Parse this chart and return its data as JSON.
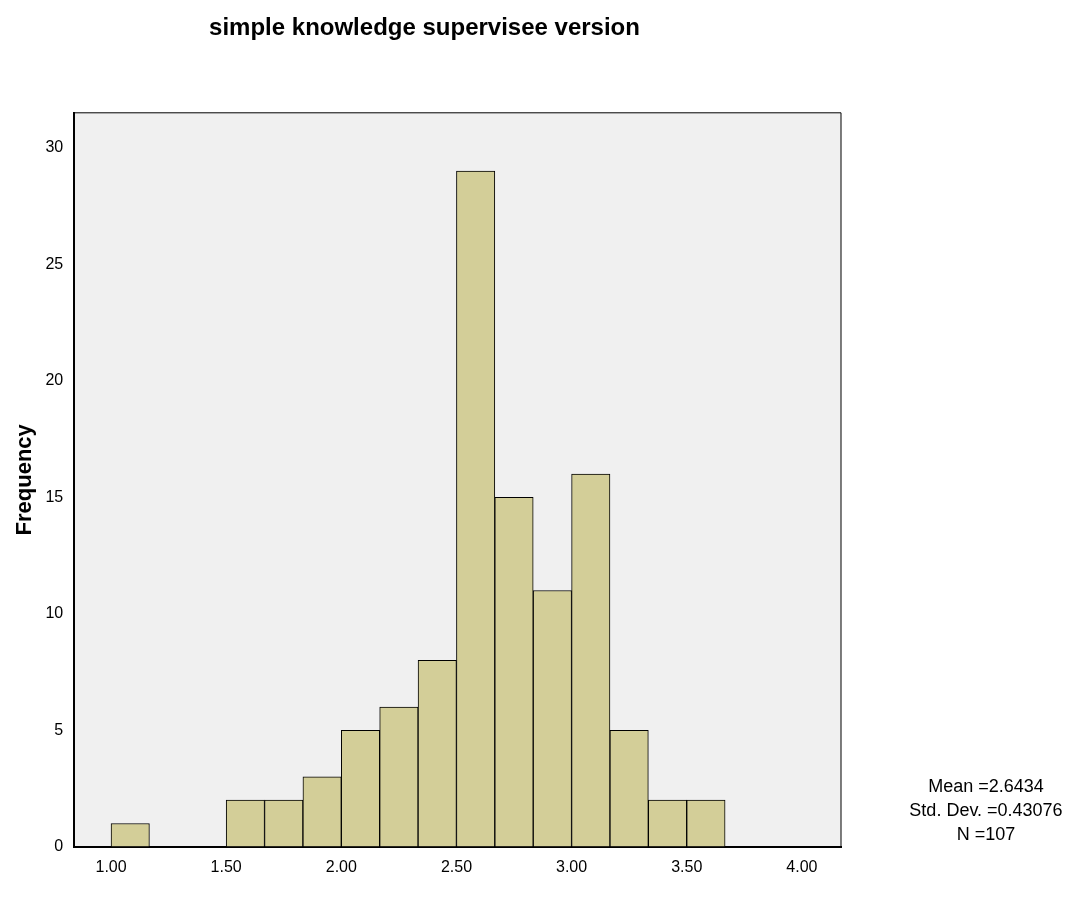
{
  "chart_data": {
    "type": "histogram",
    "title": "simple knowledge supervisee version",
    "ylabel": "Frequency",
    "bins": [
      1,
      1.1667,
      1.3333,
      1.5,
      1.6667,
      1.8333,
      2,
      2.1667,
      2.3333,
      2.5,
      2.6667,
      2.8333,
      3,
      3.1667,
      3.3333,
      3.5,
      3.6667
    ],
    "values": [
      1,
      0,
      0,
      2,
      2,
      3,
      5,
      6,
      8,
      29,
      15,
      11,
      16,
      5,
      2,
      2
    ],
    "color": "#d3ce98",
    "xlim": [
      0.84,
      4.17
    ],
    "xticks": [
      {
        "value": 1,
        "label": "1.00"
      },
      {
        "value": 1.5,
        "label": "1.50"
      },
      {
        "value": 2,
        "label": "2.00"
      },
      {
        "value": 2.5,
        "label": "2.50"
      },
      {
        "value": 3,
        "label": "3.00"
      },
      {
        "value": 3.5,
        "label": "3.50"
      },
      {
        "value": 4,
        "label": "4.00"
      }
    ],
    "ylim": [
      0,
      31.5
    ],
    "yticks": [
      0,
      5,
      10,
      15,
      20,
      25,
      30
    ],
    "grid": false,
    "legend": false,
    "annotations": [
      "Mean =2.6434",
      "Std. Dev. =0.43076",
      "N =107"
    ]
  }
}
